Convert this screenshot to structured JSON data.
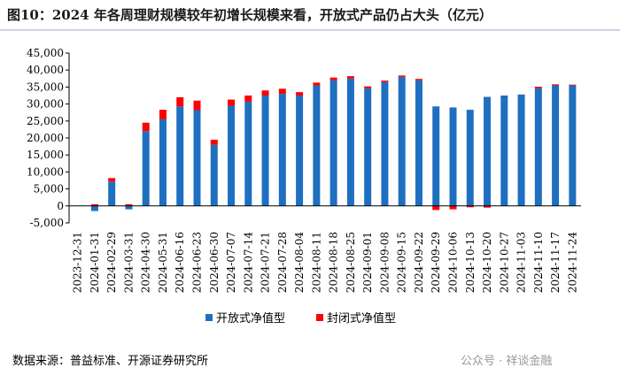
{
  "chart_data": {
    "type": "stacked_bar",
    "title": "图10：2024 年各周理财规模较年初增长规模来看，开放式产品仍占大头（亿元）",
    "source": "数据来源：普益标准、开源证券研究所",
    "watermark": "公众号 · 祥谈金融",
    "categories": [
      "2023-12-31",
      "2024-01-31",
      "2024-02-29",
      "2024-03-31",
      "2024-04-30",
      "2024-05-31",
      "2024-06-16",
      "2024-06-23",
      "2024-06-30",
      "2024-07-07",
      "2024-07-14",
      "2024-07-21",
      "2024-07-28",
      "2024-08-04",
      "2024-08-11",
      "2024-08-18",
      "2024-08-25",
      "2024-09-01",
      "2024-09-08",
      "2024-09-15",
      "2024-09-22",
      "2024-09-29",
      "2024-10-06",
      "2024-10-13",
      "2024-10-20",
      "2024-10-27",
      "2024-11-03",
      "2024-11-10",
      "2024-11-17",
      "2024-11-24"
    ],
    "series": [
      {
        "name": "开放式净值型",
        "color": "#1f6fc0",
        "values": [
          0,
          -1500,
          7200,
          -1000,
          22000,
          25500,
          29300,
          28200,
          18000,
          29500,
          30700,
          32500,
          33000,
          32500,
          35500,
          37000,
          37500,
          34700,
          36500,
          38000,
          37000,
          29300,
          29000,
          28300,
          32100,
          32500,
          32800,
          34700,
          35500,
          35500
        ]
      },
      {
        "name": "封闭式净值型",
        "color": "#ff0000",
        "values": [
          0,
          500,
          1000,
          500,
          2500,
          2800,
          2700,
          2800,
          1500,
          1800,
          1800,
          1500,
          1500,
          1000,
          800,
          800,
          700,
          500,
          400,
          400,
          400,
          -1200,
          -1000,
          -400,
          -500,
          0,
          0,
          400,
          300,
          200
        ]
      }
    ],
    "ylim": [
      -5000,
      45000
    ],
    "yticks": [
      {
        "value": -5000,
        "label": "-5,000"
      },
      0,
      {
        "value": 5000,
        "label": "5,000"
      },
      {
        "value": 10000,
        "label": "10,000"
      },
      {
        "value": 15000,
        "label": "15,000"
      },
      {
        "value": 20000,
        "label": "20,000"
      },
      {
        "value": 25000,
        "label": "25,000"
      },
      {
        "value": 30000,
        "label": "30,000"
      },
      {
        "value": 35000,
        "label": "35,000"
      },
      {
        "value": 40000,
        "label": "40,000"
      },
      {
        "value": 45000,
        "label": "45,000"
      }
    ],
    "grid": false,
    "legend": "bottom"
  }
}
